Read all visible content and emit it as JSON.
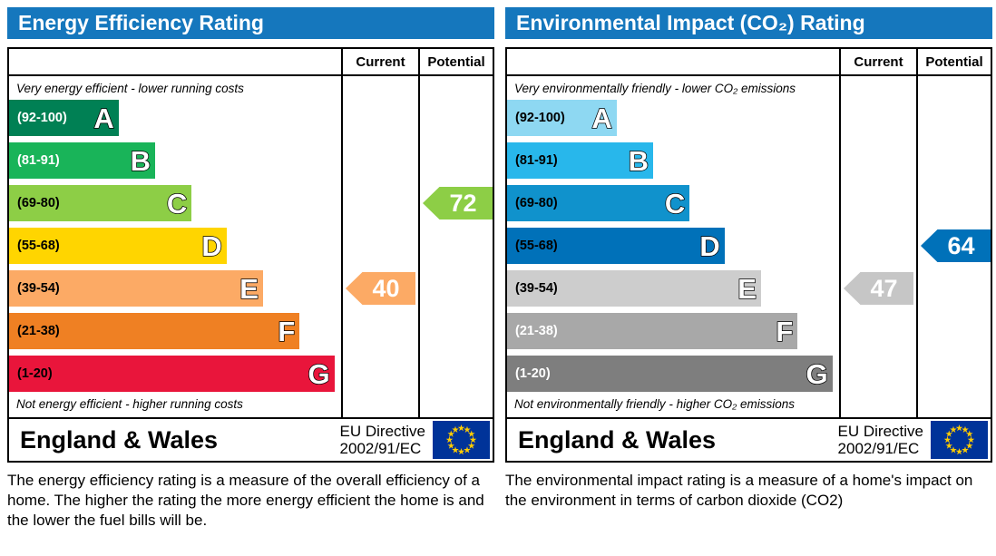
{
  "colors": {
    "header_bg": "#1577bd",
    "eu_flag_bg": "#003399",
    "eu_star": "#ffcc00"
  },
  "panels": [
    {
      "title": "Energy Efficiency Rating",
      "col_current": "Current",
      "col_potential": "Potential",
      "note_top": "Very energy efficient - lower running costs",
      "note_bottom": "Not energy efficient - higher running costs",
      "bands": [
        {
          "letter": "A",
          "range": "(92-100)",
          "color": "#008054",
          "label_color": "#ffffff",
          "width": "33%"
        },
        {
          "letter": "B",
          "range": "(81-91)",
          "color": "#19b459",
          "label_color": "#ffffff",
          "width": "44%"
        },
        {
          "letter": "C",
          "range": "(69-80)",
          "color": "#8dce46",
          "label_color": "#000000",
          "width": "55%"
        },
        {
          "letter": "D",
          "range": "(55-68)",
          "color": "#ffd500",
          "label_color": "#000000",
          "width": "65.5%"
        },
        {
          "letter": "E",
          "range": "(39-54)",
          "color": "#fcaa65",
          "label_color": "#000000",
          "width": "76.5%"
        },
        {
          "letter": "F",
          "range": "(21-38)",
          "color": "#ef8023",
          "label_color": "#000000",
          "width": "87.5%"
        },
        {
          "letter": "G",
          "range": "(1-20)",
          "color": "#e9153b",
          "label_color": "#000000",
          "width": "98%"
        }
      ],
      "current": {
        "value": "40",
        "color": "#fcaa65",
        "band_index": 4
      },
      "potential": {
        "value": "72",
        "color": "#8dce46",
        "band_index": 2
      },
      "footer": {
        "region": "England & Wales",
        "directive_line1": "EU Directive",
        "directive_line2": "2002/91/EC"
      },
      "description": "The energy efficiency rating is a measure of the overall efficiency of a home.  The higher the rating the more energy efficient the home is and the lower the fuel bills will be."
    },
    {
      "title": "Environmental Impact (CO₂) Rating",
      "col_current": "Current",
      "col_potential": "Potential",
      "note_top": "Very environmentally friendly - lower CO₂ emissions",
      "note_bottom": "Not environmentally friendly - higher CO₂ emissions",
      "bands": [
        {
          "letter": "A",
          "range": "(92-100)",
          "color": "#8ed8f2",
          "label_color": "#000000",
          "width": "33%"
        },
        {
          "letter": "B",
          "range": "(81-91)",
          "color": "#28b7eb",
          "label_color": "#000000",
          "width": "44%"
        },
        {
          "letter": "C",
          "range": "(69-80)",
          "color": "#1092cc",
          "label_color": "#000000",
          "width": "55%"
        },
        {
          "letter": "D",
          "range": "(55-68)",
          "color": "#0071b9",
          "label_color": "#000000",
          "width": "65.5%"
        },
        {
          "letter": "E",
          "range": "(39-54)",
          "color": "#cdcdcd",
          "label_color": "#000000",
          "width": "76.5%"
        },
        {
          "letter": "F",
          "range": "(21-38)",
          "color": "#a8a8a8",
          "label_color": "#ffffff",
          "width": "87.5%"
        },
        {
          "letter": "G",
          "range": "(1-20)",
          "color": "#7e7e7e",
          "label_color": "#ffffff",
          "width": "98%"
        }
      ],
      "current": {
        "value": "47",
        "color": "#c6c6c6",
        "band_index": 4
      },
      "potential": {
        "value": "64",
        "color": "#0071b9",
        "band_index": 3
      },
      "footer": {
        "region": "England & Wales",
        "directive_line1": "EU Directive",
        "directive_line2": "2002/91/EC"
      },
      "description": "The environmental impact rating is a measure of a home's impact on the environment in terms of carbon dioxide (CO2)"
    }
  ],
  "chart_data": [
    {
      "type": "bar",
      "title": "Energy Efficiency Rating",
      "categories": [
        "A",
        "B",
        "C",
        "D",
        "E",
        "F",
        "G"
      ],
      "band_ranges": [
        "92-100",
        "81-91",
        "69-80",
        "55-68",
        "39-54",
        "21-38",
        "1-20"
      ],
      "band_colors": [
        "#008054",
        "#19b459",
        "#8dce46",
        "#ffd500",
        "#fcaa65",
        "#ef8023",
        "#e9153b"
      ],
      "series": [
        {
          "name": "Current",
          "value": 40,
          "band": "E"
        },
        {
          "name": "Potential",
          "value": 72,
          "band": "C"
        }
      ],
      "scale": [
        1,
        100
      ],
      "annotations": [
        "Very energy efficient - lower running costs",
        "Not energy efficient - higher running costs"
      ],
      "region": "England & Wales",
      "directive": "EU Directive 2002/91/EC"
    },
    {
      "type": "bar",
      "title": "Environmental Impact (CO₂) Rating",
      "categories": [
        "A",
        "B",
        "C",
        "D",
        "E",
        "F",
        "G"
      ],
      "band_ranges": [
        "92-100",
        "81-91",
        "69-80",
        "55-68",
        "39-54",
        "21-38",
        "1-20"
      ],
      "band_colors": [
        "#8ed8f2",
        "#28b7eb",
        "#1092cc",
        "#0071b9",
        "#cdcdcd",
        "#a8a8a8",
        "#7e7e7e"
      ],
      "series": [
        {
          "name": "Current",
          "value": 47,
          "band": "E"
        },
        {
          "name": "Potential",
          "value": 64,
          "band": "D"
        }
      ],
      "scale": [
        1,
        100
      ],
      "annotations": [
        "Very environmentally friendly - lower CO₂ emissions",
        "Not environmentally friendly - higher CO₂ emissions"
      ],
      "region": "England & Wales",
      "directive": "EU Directive 2002/91/EC"
    }
  ]
}
